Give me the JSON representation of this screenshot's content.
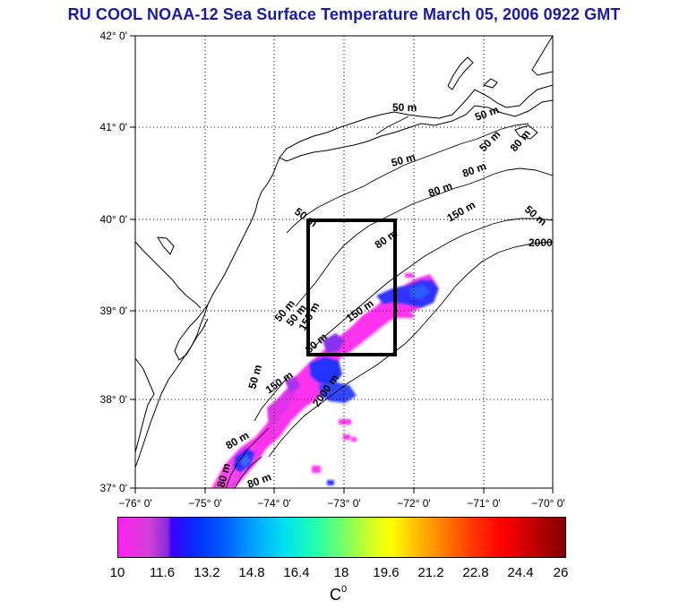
{
  "title": "RU COOL  NOAA-12 Sea Surface Temperature March 05, 2006 0922 GMT",
  "map": {
    "lat_labels": [
      "42° 0'",
      "41° 0'",
      "40° 0'",
      "39° 0'",
      "38° 0'",
      "37° 0'"
    ],
    "lon_labels": [
      "−76° 0'",
      "−75° 0'",
      "−74° 0'",
      "−73° 0'",
      "−72° 0'",
      "−71° 0'",
      "−70° 0'"
    ],
    "lat_range": [
      37,
      42
    ],
    "lon_range": [
      -76,
      -70
    ],
    "contour_labels": [
      "50 m",
      "50 m",
      "50 m",
      "50 m",
      "80 m",
      "80 m",
      "80 m",
      "150 m",
      "50 m",
      "80 m",
      "2000",
      "50 m",
      "50 m",
      "50 m",
      "150 m",
      "150 m",
      "80 m",
      "50 m",
      "150 m",
      "2000 m",
      "80 m",
      "80 m",
      "80 m"
    ],
    "study_box": {
      "lon_min": -73.45,
      "lon_max": -72.25,
      "lat_min": 38.5,
      "lat_max": 40.0
    }
  },
  "colorbar": {
    "ticks": [
      "10",
      "11.6",
      "13.2",
      "14.8",
      "16.4",
      "18",
      "19.6",
      "21.2",
      "22.8",
      "24.4",
      "26"
    ],
    "unit": "C",
    "unit_sup": "0",
    "range": [
      10,
      26
    ]
  }
}
